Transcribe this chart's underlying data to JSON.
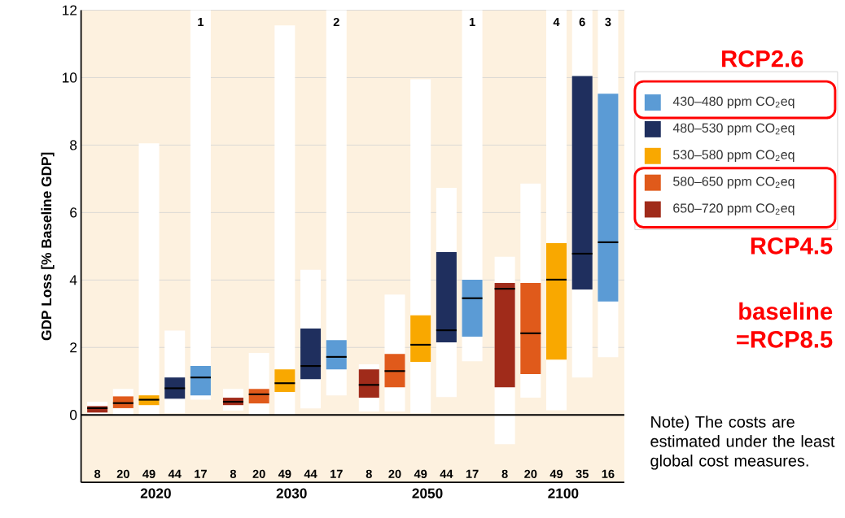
{
  "chart_data": {
    "type": "box",
    "ylabel": "GDP Loss [% Baseline GDP]",
    "categories": [
      "2020",
      "2030",
      "2050",
      "2100"
    ],
    "ylim": [
      -2,
      12
    ],
    "yticks": [
      0,
      2,
      4,
      6,
      8,
      10,
      12
    ],
    "grid": "y",
    "legend": "right",
    "ref_lines": [
      {
        "axis": "y",
        "value": 0
      }
    ],
    "series": [
      {
        "name": "430–480 ppm CO$_{2}$eq",
        "color": "#5b9bd5",
        "boxes": [
          {
            "low": 0.45,
            "q1": 0.58,
            "median": 1.11,
            "q3": 1.45,
            "high": 12
          },
          {
            "low": 0.58,
            "q1": 1.35,
            "median": 1.72,
            "q3": 2.22,
            "high": 12
          },
          {
            "low": 1.59,
            "q1": 2.32,
            "median": 3.46,
            "q3": 4.01,
            "high": 12
          },
          {
            "low": 1.71,
            "q1": 3.36,
            "median": 5.12,
            "q3": 9.52,
            "high": 12
          }
        ]
      },
      {
        "name": "480–530 ppm CO$_{2}$eq",
        "color": "#1f2f5e",
        "boxes": [
          {
            "low": 0.05,
            "q1": 0.48,
            "median": 0.79,
            "q3": 1.11,
            "high": 2.5
          },
          {
            "low": 0.19,
            "q1": 1.06,
            "median": 1.45,
            "q3": 2.56,
            "high": 4.3
          },
          {
            "low": 0.53,
            "q1": 2.15,
            "median": 2.51,
            "q3": 4.83,
            "high": 6.73
          },
          {
            "low": 1.11,
            "q1": 3.72,
            "median": 4.78,
            "q3": 10.05,
            "high": 12
          }
        ]
      },
      {
        "name": "530–580 ppm CO$_{2}$eq",
        "color": "#f9a800",
        "boxes": [
          {
            "low": 0,
            "q1": 0.29,
            "median": 0.45,
            "q3": 0.58,
            "high": 8.05
          },
          {
            "low": 0,
            "q1": 0.68,
            "median": 0.94,
            "q3": 1.35,
            "high": 11.55
          },
          {
            "low": 0.05,
            "q1": 1.57,
            "median": 2.08,
            "q3": 2.95,
            "high": 9.95
          },
          {
            "low": 0.14,
            "q1": 1.64,
            "median": 4.01,
            "q3": 5.09,
            "high": 12
          }
        ]
      },
      {
        "name": "580–650 ppm CO$_{2}$eq",
        "color": "#e05a1b",
        "boxes": [
          {
            "low": 0,
            "q1": 0.2,
            "median": 0.35,
            "q3": 0.55,
            "high": 0.77
          },
          {
            "low": 0,
            "q1": 0.34,
            "median": 0.61,
            "q3": 0.77,
            "high": 1.84
          },
          {
            "low": 0.1,
            "q1": 0.82,
            "median": 1.3,
            "q3": 1.81,
            "high": 3.57
          },
          {
            "low": 0.51,
            "q1": 1.21,
            "median": 2.42,
            "q3": 3.91,
            "high": 6.86
          }
        ]
      },
      {
        "name": "650–720 ppm CO$_{2}$eq",
        "color": "#a02b1a",
        "boxes": [
          {
            "low": 0,
            "q1": 0.07,
            "median": 0.2,
            "q3": 0.26,
            "high": 0.39
          },
          {
            "low": 0.13,
            "q1": 0.29,
            "median": 0.39,
            "q3": 0.51,
            "high": 0.77
          },
          {
            "low": 0.1,
            "q1": 0.51,
            "median": 0.89,
            "q3": 1.35,
            "high": 1.5
          },
          {
            "low": -0.87,
            "q1": 0.82,
            "median": 3.74,
            "q3": 3.91,
            "high": 4.69
          }
        ]
      }
    ],
    "annotations": [
      "8",
      "20",
      "49",
      "44",
      "17",
      "8",
      "20",
      "49",
      "44",
      "17",
      "8",
      "20",
      "49",
      "44",
      "17",
      "8",
      "20",
      "49",
      "35",
      "16",
      "1",
      "2",
      "1",
      "4",
      "6",
      "3",
      "RCP2.6",
      "RCP4.5",
      "baseline =RCP8.5",
      "Note) The costs are estimated under the least global cost measures."
    ]
  }
}
